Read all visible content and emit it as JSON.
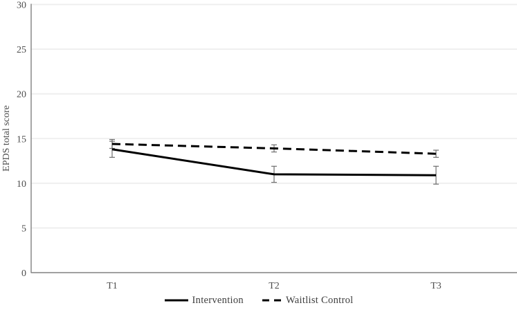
{
  "chart_data": {
    "type": "line",
    "title": "",
    "categories": [
      "T1",
      "T2",
      "T3"
    ],
    "series": [
      {
        "name": "Intervention",
        "line_style": "solid",
        "values": [
          13.8,
          11.0,
          10.9
        ],
        "error_bars": [
          0.9,
          0.9,
          1.0
        ]
      },
      {
        "name": "Waitlist Control",
        "line_style": "dashed",
        "values": [
          14.4,
          13.9,
          13.3
        ],
        "error_bars": [
          0.5,
          0.4,
          0.4
        ]
      }
    ],
    "xlabel": "",
    "ylabel": "EPDS total score",
    "ylim": [
      0,
      30
    ],
    "ytick_step": 5,
    "yticks": [
      0,
      5,
      10,
      15,
      20,
      25,
      30
    ],
    "grid": "horizontal",
    "legend_position": "bottom",
    "colors": {
      "series_line": "#000000",
      "gridline": "#eeeeee",
      "axis_line": "#808080",
      "tick_text": "#4d4d4d",
      "error_bar": "#6e6e6e",
      "background": "#ffffff"
    }
  }
}
